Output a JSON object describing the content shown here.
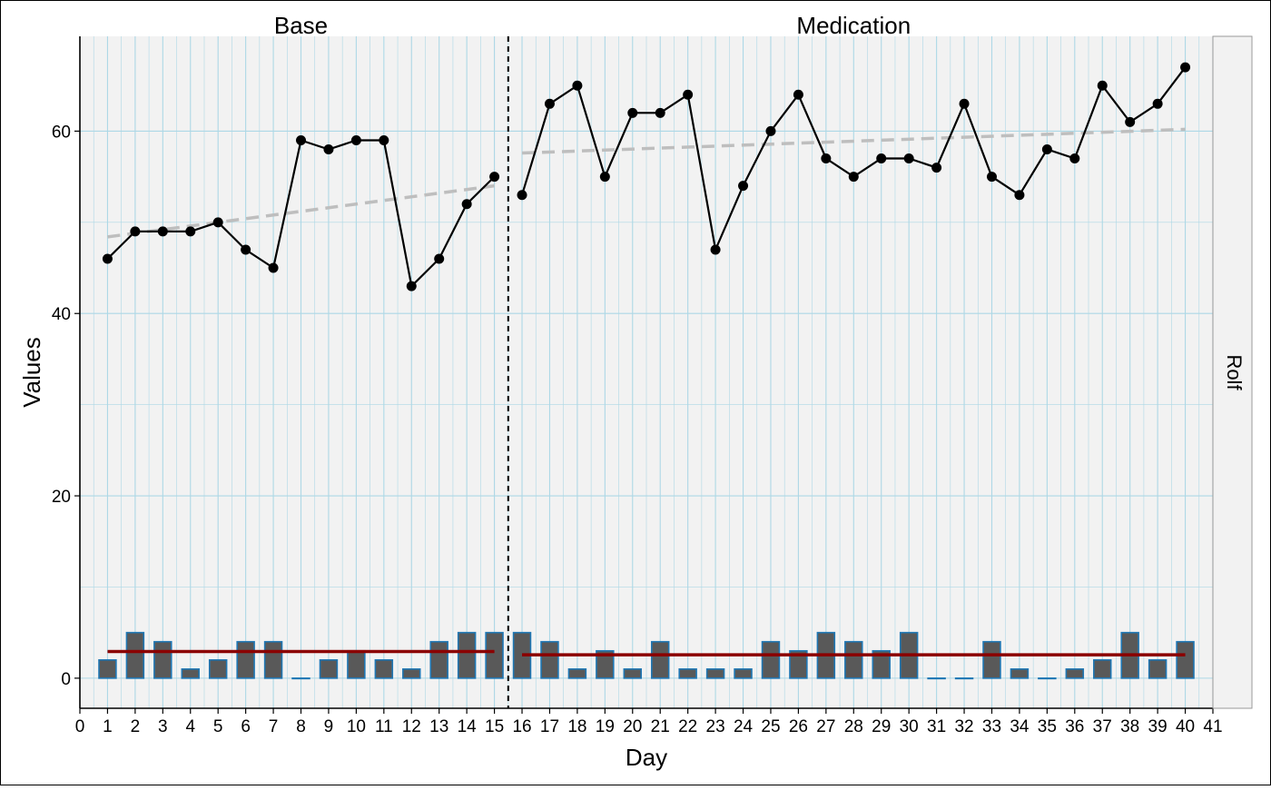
{
  "chart_data": {
    "type": "line",
    "phases": [
      {
        "label": "Base",
        "start_day": 1,
        "end_day": 15
      },
      {
        "label": "Medication",
        "start_day": 16,
        "end_day": 40
      }
    ],
    "phase_separator_day": 15.5,
    "facet_label": "Rolf",
    "xlabel": "Day",
    "ylabel": "Values",
    "xlim": [
      0,
      41
    ],
    "ylim": [
      -3.3,
      70.4
    ],
    "x_ticks": [
      0,
      1,
      2,
      3,
      4,
      5,
      6,
      7,
      8,
      9,
      10,
      11,
      12,
      13,
      14,
      15,
      16,
      17,
      18,
      19,
      20,
      21,
      22,
      23,
      24,
      25,
      26,
      27,
      28,
      29,
      30,
      31,
      32,
      33,
      34,
      35,
      36,
      37,
      38,
      39,
      40,
      41
    ],
    "y_ticks": [
      0,
      20,
      40,
      60
    ],
    "y_minor_ticks": [
      10,
      30,
      50
    ],
    "series": [
      {
        "name": "Values",
        "kind": "line-points",
        "x": [
          1,
          2,
          3,
          4,
          5,
          6,
          7,
          8,
          9,
          10,
          11,
          12,
          13,
          14,
          15,
          16,
          17,
          18,
          19,
          20,
          21,
          22,
          23,
          24,
          25,
          26,
          27,
          28,
          29,
          30,
          31,
          32,
          33,
          34,
          35,
          36,
          37,
          38,
          39,
          40
        ],
        "values": [
          46,
          49,
          49,
          49,
          50,
          47,
          45,
          59,
          58,
          59,
          59,
          43,
          46,
          52,
          55,
          53,
          63,
          65,
          55,
          62,
          62,
          64,
          47,
          54,
          60,
          64,
          57,
          55,
          57,
          57,
          56,
          63,
          55,
          53,
          58,
          57,
          65,
          61,
          63,
          67
        ]
      },
      {
        "name": "Bars",
        "kind": "bar",
        "x": [
          1,
          2,
          3,
          4,
          5,
          6,
          7,
          8,
          9,
          10,
          11,
          12,
          13,
          14,
          15,
          16,
          17,
          18,
          19,
          20,
          21,
          22,
          23,
          24,
          25,
          26,
          27,
          28,
          29,
          30,
          31,
          32,
          33,
          34,
          35,
          36,
          37,
          38,
          39,
          40
        ],
        "values": [
          2,
          5,
          4,
          1,
          2,
          4,
          4,
          0,
          2,
          3,
          2,
          1,
          4,
          5,
          5,
          5,
          4,
          1,
          3,
          1,
          4,
          1,
          1,
          1,
          4,
          3,
          5,
          4,
          3,
          5,
          0,
          0,
          4,
          1,
          0,
          1,
          2,
          5,
          2,
          4
        ]
      }
    ],
    "trend_lines": [
      {
        "phase": "Base",
        "x": [
          1,
          15
        ],
        "y": [
          48.4,
          54.0
        ]
      },
      {
        "phase": "Medication",
        "x": [
          16,
          40
        ],
        "y": [
          57.6,
          60.2
        ]
      }
    ],
    "mean_lines": [
      {
        "phase": "Base",
        "x": [
          1,
          15
        ],
        "y": 2.93
      },
      {
        "phase": "Medication",
        "x": [
          16,
          40
        ],
        "y": 2.56
      }
    ],
    "colors": {
      "panel_background": "#f2f2f2",
      "grid": "#add8e6",
      "line": "#000000",
      "points": "#000000",
      "bar_fill": "#595959",
      "bar_outline": "#1f77b4",
      "trend": "#bebebe",
      "mean": "#8b0000",
      "separator": "#000000",
      "strip_background": "#f2f2f2",
      "strip_border": "#999999"
    }
  }
}
